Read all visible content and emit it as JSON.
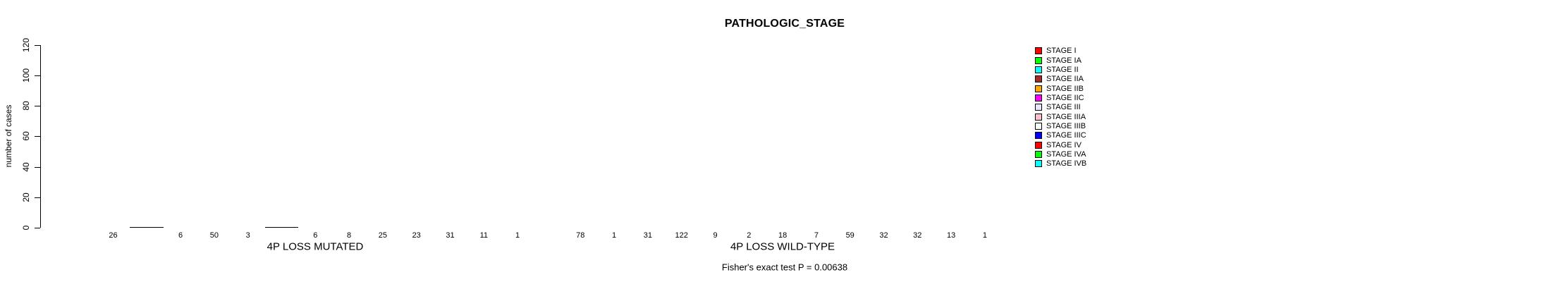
{
  "title": "PATHOLOGIC_STAGE",
  "caption": "Fisher's exact test P = 0.00638",
  "y_axis": {
    "label": "number of cases",
    "ticks": [
      0,
      20,
      40,
      60,
      80,
      100,
      120
    ]
  },
  "chart_data": {
    "type": "bar",
    "title": "PATHOLOGIC_STAGE",
    "xlabel": "",
    "ylabel": "number of cases",
    "ylim": [
      0,
      120
    ],
    "yticks": [
      0,
      20,
      40,
      60,
      80,
      100,
      120
    ],
    "grid": false,
    "legend_position": "right",
    "bar_value_labels_shown": true,
    "categories": [
      "STAGE I",
      "STAGE IA",
      "STAGE II",
      "STAGE IIA",
      "STAGE IIB",
      "STAGE IIC",
      "STAGE III",
      "STAGE IIIA",
      "STAGE IIIB",
      "STAGE IIIC",
      "STAGE IV",
      "STAGE IVA",
      "STAGE IVB"
    ],
    "colors": [
      "#FF0000",
      "#00FF00",
      "#00FFFF",
      "#A52A2A",
      "#FFA500",
      "#FF00FF",
      "#E6E6FA",
      "#FFC0CB",
      "#F0FFFF",
      "#0000FF",
      "#FF0000",
      "#00FF00",
      "#00FFFF"
    ],
    "series": [
      {
        "name": "4P LOSS MUTATED",
        "values": [
          26,
          0,
          6,
          50,
          3,
          0,
          6,
          8,
          25,
          23,
          31,
          11,
          1
        ]
      },
      {
        "name": "4P LOSS WILD-TYPE",
        "values": [
          78,
          1,
          31,
          122,
          9,
          2,
          18,
          7,
          59,
          32,
          32,
          13,
          1
        ]
      }
    ]
  },
  "legend": {
    "items": [
      {
        "label": "STAGE I",
        "color": "#FF0000"
      },
      {
        "label": "STAGE IA",
        "color": "#00FF00"
      },
      {
        "label": "STAGE II",
        "color": "#00FFFF"
      },
      {
        "label": "STAGE IIA",
        "color": "#A52A2A"
      },
      {
        "label": "STAGE IIB",
        "color": "#FFA500"
      },
      {
        "label": "STAGE IIC",
        "color": "#FF00FF"
      },
      {
        "label": "STAGE III",
        "color": "#E6E6FA"
      },
      {
        "label": "STAGE IIIA",
        "color": "#FFC0CB"
      },
      {
        "label": "STAGE IIIB",
        "color": "#F0FFFF"
      },
      {
        "label": "STAGE IIIC",
        "color": "#0000FF"
      },
      {
        "label": "STAGE IV",
        "color": "#FF0000"
      },
      {
        "label": "STAGE IVA",
        "color": "#00FF00"
      },
      {
        "label": "STAGE IVB",
        "color": "#00FFFF"
      }
    ]
  }
}
